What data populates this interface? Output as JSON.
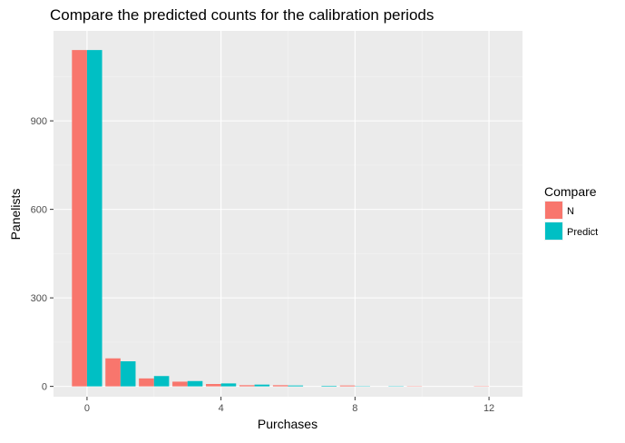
{
  "chart_data": {
    "type": "bar",
    "title": "Compare the predicted counts for the calibration periods",
    "xlabel": "Purchases",
    "ylabel": "Panelists",
    "x": [
      0,
      1,
      2,
      3,
      4,
      5,
      6,
      7,
      8,
      9,
      10,
      11,
      12
    ],
    "series": [
      {
        "name": "N",
        "color": "#F8766D",
        "values": [
          1140,
          95,
          27,
          16,
          8,
          4,
          4,
          0,
          3,
          0,
          1,
          0,
          1
        ]
      },
      {
        "name": "Predict",
        "color": "#00BFC4",
        "values": [
          1140,
          85,
          35,
          18,
          10,
          6,
          3,
          2,
          1,
          1,
          0,
          0,
          0
        ]
      }
    ],
    "xlim": [
      -1,
      13
    ],
    "ylim": [
      -35,
      1205
    ],
    "x_ticks": [
      0,
      4,
      8,
      12
    ],
    "y_ticks": [
      0,
      300,
      600,
      900
    ],
    "grid": true,
    "legend": {
      "title": "Compare",
      "position": "right"
    }
  }
}
